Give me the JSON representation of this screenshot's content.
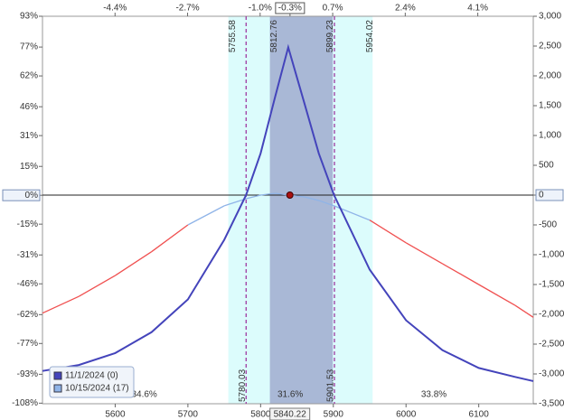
{
  "chart_data": {
    "type": "line",
    "x": [
      5500,
      5550,
      5600,
      5650,
      5700,
      5750,
      5780,
      5800,
      5820,
      5838,
      5860,
      5880,
      5901,
      5950,
      6000,
      6050,
      6100,
      6150,
      6175
    ],
    "series": [
      {
        "name": "11/1/2024 (0)",
        "color": "#4444bb",
        "axis": "y2",
        "values": [
          -2950,
          -2850,
          -2650,
          -2300,
          -1750,
          -750,
          0,
          700,
          1650,
          2480,
          1550,
          700,
          0,
          -1250,
          -2100,
          -2600,
          -2900,
          -3050,
          -3120
        ]
      },
      {
        "name": "10/15/2024 (17)",
        "color": "#8fb4e8",
        "axis": "y2",
        "segment_colors": [
          "#f05050",
          "#f05050",
          "#f05050",
          "#f05050",
          "#8fb4e8",
          "#8fb4e8",
          "#8fb4e8",
          "#8fb4e8",
          "#8fb4e8",
          "#8fb4e8",
          "#8fb4e8",
          "#8fb4e8",
          "#8fb4e8",
          "#f05050",
          "#f05050",
          "#f05050",
          "#f05050",
          "#f05050"
        ],
        "values": [
          -1980,
          -1700,
          -1350,
          -950,
          -500,
          -180,
          -60,
          0,
          30,
          0,
          -30,
          -90,
          -180,
          -420,
          -800,
          -1150,
          -1500,
          -1850,
          -2050
        ]
      }
    ],
    "xlim": [
      5500,
      6175
    ],
    "xticks": [
      5600,
      5700,
      5800,
      5900,
      6000,
      6100
    ],
    "x2lim": [
      -6.1,
      5.4
    ],
    "x2ticks": [
      {
        "value": -4.4,
        "label": "-4.4%"
      },
      {
        "value": -2.7,
        "label": "-2.7%"
      },
      {
        "value": -1.0,
        "label": "-1.0%"
      },
      {
        "value": -0.3,
        "label": "-0.3%"
      },
      {
        "value": 0.7,
        "label": "0.7%"
      },
      {
        "value": 2.4,
        "label": "2.4%"
      },
      {
        "value": 4.1,
        "label": "4.1%"
      }
    ],
    "ylim": [
      -108.3,
      93
    ],
    "yticks": [
      {
        "value": 93,
        "label": "93%"
      },
      {
        "value": 77,
        "label": "77%"
      },
      {
        "value": 62,
        "label": "62%"
      },
      {
        "value": 46,
        "label": "46%"
      },
      {
        "value": 31,
        "label": "31%"
      },
      {
        "value": 15,
        "label": "15%"
      },
      {
        "value": 0,
        "label": "0%"
      },
      {
        "value": -15,
        "label": "-15%"
      },
      {
        "value": -31,
        "label": "-31%"
      },
      {
        "value": -46,
        "label": "-46%"
      },
      {
        "value": -62,
        "label": "-62%"
      },
      {
        "value": -77,
        "label": "-77%"
      },
      {
        "value": -93,
        "label": "-93%"
      },
      {
        "value": -108,
        "label": "-108%"
      }
    ],
    "y2lim": [
      -3500,
      3000
    ],
    "y2ticks": [
      {
        "value": 3000,
        "label": "3,000"
      },
      {
        "value": 2500,
        "label": "2,500"
      },
      {
        "value": 2000,
        "label": "2,000"
      },
      {
        "value": 1500,
        "label": "1,500"
      },
      {
        "value": 1000,
        "label": "1,000"
      },
      500,
      0,
      -500,
      {
        "value": -1000,
        "label": "-1,000"
      },
      {
        "value": -1500,
        "label": "-1,500"
      },
      {
        "value": -2000,
        "label": "-2,000"
      },
      {
        "value": -2500,
        "label": "-2,500"
      },
      {
        "value": -3000,
        "label": "-3,000"
      },
      {
        "value": -3500,
        "label": "-3,500"
      }
    ],
    "bands": [
      {
        "x": [
          5755.58,
          5954.02
        ],
        "color": "#dcfcfc",
        "label_color": "#a8d8e8"
      },
      {
        "x": [
          5812.76,
          5899.23
        ],
        "color": "#a9b8d6",
        "label_color": "#d4e0f4"
      }
    ],
    "vlines": [
      {
        "x": 5780.03,
        "color": "#9a2a9a"
      },
      {
        "x": 5901.53,
        "color": "#9a2a9a"
      }
    ],
    "region_labels": [
      "34.6%",
      "31.6%",
      "33.8%"
    ],
    "current": {
      "x": 5840.22,
      "color": "#aa1111"
    }
  }
}
